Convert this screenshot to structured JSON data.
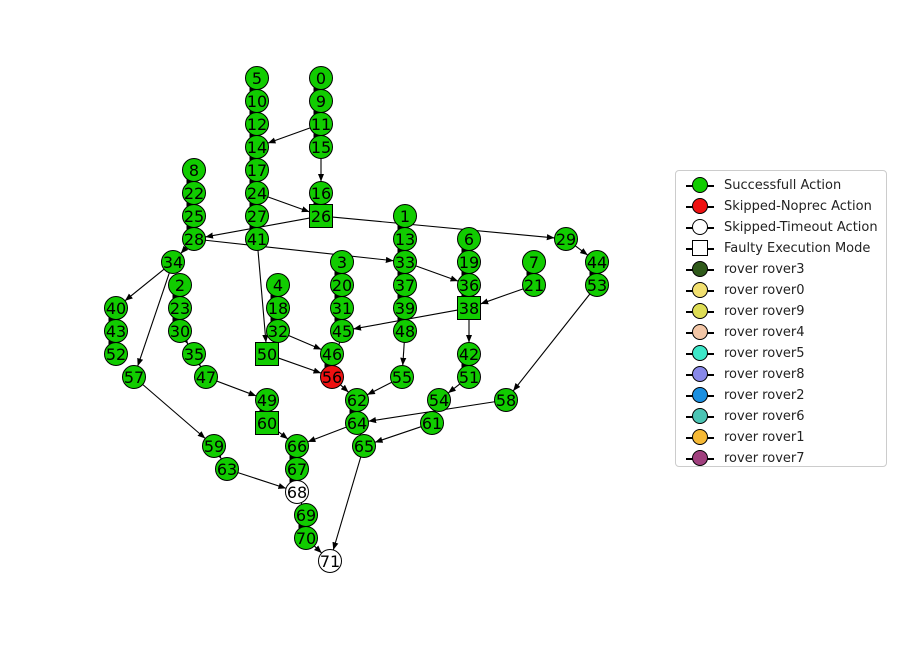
{
  "colors": {
    "success": "#11cc00",
    "skipped_noprec": "#ee1111",
    "skipped_timeout": "#ffffff",
    "edge": "#000000"
  },
  "graph": {
    "nodes": [
      {
        "id": "0",
        "status": "success",
        "shape": "circle"
      },
      {
        "id": "1",
        "status": "success",
        "shape": "circle"
      },
      {
        "id": "2",
        "status": "success",
        "shape": "circle"
      },
      {
        "id": "3",
        "status": "success",
        "shape": "circle"
      },
      {
        "id": "4",
        "status": "success",
        "shape": "circle"
      },
      {
        "id": "5",
        "status": "success",
        "shape": "circle"
      },
      {
        "id": "6",
        "status": "success",
        "shape": "circle"
      },
      {
        "id": "7",
        "status": "success",
        "shape": "circle"
      },
      {
        "id": "8",
        "status": "success",
        "shape": "circle"
      },
      {
        "id": "9",
        "status": "success",
        "shape": "circle"
      },
      {
        "id": "10",
        "status": "success",
        "shape": "circle"
      },
      {
        "id": "11",
        "status": "success",
        "shape": "circle"
      },
      {
        "id": "12",
        "status": "success",
        "shape": "circle"
      },
      {
        "id": "13",
        "status": "success",
        "shape": "circle"
      },
      {
        "id": "14",
        "status": "success",
        "shape": "circle"
      },
      {
        "id": "15",
        "status": "success",
        "shape": "circle"
      },
      {
        "id": "16",
        "status": "success",
        "shape": "circle"
      },
      {
        "id": "17",
        "status": "success",
        "shape": "circle"
      },
      {
        "id": "18",
        "status": "success",
        "shape": "circle"
      },
      {
        "id": "19",
        "status": "success",
        "shape": "circle"
      },
      {
        "id": "20",
        "status": "success",
        "shape": "circle"
      },
      {
        "id": "21",
        "status": "success",
        "shape": "circle"
      },
      {
        "id": "22",
        "status": "success",
        "shape": "circle"
      },
      {
        "id": "23",
        "status": "success",
        "shape": "circle"
      },
      {
        "id": "24",
        "status": "success",
        "shape": "circle"
      },
      {
        "id": "25",
        "status": "success",
        "shape": "circle"
      },
      {
        "id": "26",
        "status": "success",
        "shape": "square"
      },
      {
        "id": "27",
        "status": "success",
        "shape": "circle"
      },
      {
        "id": "28",
        "status": "success",
        "shape": "circle"
      },
      {
        "id": "29",
        "status": "success",
        "shape": "circle"
      },
      {
        "id": "30",
        "status": "success",
        "shape": "circle"
      },
      {
        "id": "31",
        "status": "success",
        "shape": "circle"
      },
      {
        "id": "32",
        "status": "success",
        "shape": "circle"
      },
      {
        "id": "33",
        "status": "success",
        "shape": "circle"
      },
      {
        "id": "34",
        "status": "success",
        "shape": "circle"
      },
      {
        "id": "35",
        "status": "success",
        "shape": "circle"
      },
      {
        "id": "36",
        "status": "success",
        "shape": "circle"
      },
      {
        "id": "37",
        "status": "success",
        "shape": "circle"
      },
      {
        "id": "38",
        "status": "success",
        "shape": "square"
      },
      {
        "id": "39",
        "status": "success",
        "shape": "circle"
      },
      {
        "id": "40",
        "status": "success",
        "shape": "circle"
      },
      {
        "id": "41",
        "status": "success",
        "shape": "circle"
      },
      {
        "id": "42",
        "status": "success",
        "shape": "circle"
      },
      {
        "id": "43",
        "status": "success",
        "shape": "circle"
      },
      {
        "id": "44",
        "status": "success",
        "shape": "circle"
      },
      {
        "id": "45",
        "status": "success",
        "shape": "circle"
      },
      {
        "id": "46",
        "status": "success",
        "shape": "circle"
      },
      {
        "id": "47",
        "status": "success",
        "shape": "circle"
      },
      {
        "id": "48",
        "status": "success",
        "shape": "circle"
      },
      {
        "id": "49",
        "status": "success",
        "shape": "circle"
      },
      {
        "id": "50",
        "status": "success",
        "shape": "square"
      },
      {
        "id": "51",
        "status": "success",
        "shape": "circle"
      },
      {
        "id": "52",
        "status": "success",
        "shape": "circle"
      },
      {
        "id": "53",
        "status": "success",
        "shape": "circle"
      },
      {
        "id": "54",
        "status": "success",
        "shape": "circle"
      },
      {
        "id": "55",
        "status": "success",
        "shape": "circle"
      },
      {
        "id": "56",
        "status": "skipped_noprec",
        "shape": "circle"
      },
      {
        "id": "57",
        "status": "success",
        "shape": "circle"
      },
      {
        "id": "58",
        "status": "success",
        "shape": "circle"
      },
      {
        "id": "59",
        "status": "success",
        "shape": "circle"
      },
      {
        "id": "60",
        "status": "success",
        "shape": "square"
      },
      {
        "id": "61",
        "status": "success",
        "shape": "circle"
      },
      {
        "id": "62",
        "status": "success",
        "shape": "circle"
      },
      {
        "id": "63",
        "status": "success",
        "shape": "circle"
      },
      {
        "id": "64",
        "status": "success",
        "shape": "circle"
      },
      {
        "id": "65",
        "status": "success",
        "shape": "circle"
      },
      {
        "id": "66",
        "status": "success",
        "shape": "circle"
      },
      {
        "id": "67",
        "status": "success",
        "shape": "circle"
      },
      {
        "id": "68",
        "status": "skipped_timeout",
        "shape": "circle"
      },
      {
        "id": "69",
        "status": "success",
        "shape": "circle"
      },
      {
        "id": "70",
        "status": "success",
        "shape": "circle"
      },
      {
        "id": "71",
        "status": "skipped_timeout",
        "shape": "circle"
      }
    ],
    "edges": [
      [
        "0",
        "9"
      ],
      [
        "9",
        "11"
      ],
      [
        "11",
        "14"
      ],
      [
        "11",
        "15"
      ],
      [
        "15",
        "16"
      ],
      [
        "5",
        "10"
      ],
      [
        "10",
        "12"
      ],
      [
        "12",
        "14"
      ],
      [
        "14",
        "17"
      ],
      [
        "17",
        "24"
      ],
      [
        "24",
        "26"
      ],
      [
        "24",
        "27"
      ],
      [
        "27",
        "41"
      ],
      [
        "16",
        "26"
      ],
      [
        "26",
        "28"
      ],
      [
        "26",
        "29"
      ],
      [
        "8",
        "22"
      ],
      [
        "22",
        "25"
      ],
      [
        "25",
        "28"
      ],
      [
        "28",
        "34"
      ],
      [
        "28",
        "33"
      ],
      [
        "34",
        "40"
      ],
      [
        "34",
        "57"
      ],
      [
        "40",
        "43"
      ],
      [
        "43",
        "52"
      ],
      [
        "2",
        "23"
      ],
      [
        "23",
        "30"
      ],
      [
        "30",
        "35"
      ],
      [
        "35",
        "47"
      ],
      [
        "47",
        "49"
      ],
      [
        "49",
        "60"
      ],
      [
        "60",
        "66"
      ],
      [
        "41",
        "50"
      ],
      [
        "50",
        "56"
      ],
      [
        "4",
        "18"
      ],
      [
        "18",
        "32"
      ],
      [
        "32",
        "46"
      ],
      [
        "46",
        "56"
      ],
      [
        "3",
        "20"
      ],
      [
        "20",
        "31"
      ],
      [
        "31",
        "45"
      ],
      [
        "45",
        "56"
      ],
      [
        "1",
        "13"
      ],
      [
        "13",
        "33"
      ],
      [
        "33",
        "36"
      ],
      [
        "33",
        "37"
      ],
      [
        "37",
        "39"
      ],
      [
        "39",
        "48"
      ],
      [
        "48",
        "55"
      ],
      [
        "55",
        "62"
      ],
      [
        "6",
        "19"
      ],
      [
        "19",
        "36"
      ],
      [
        "36",
        "38"
      ],
      [
        "7",
        "21"
      ],
      [
        "21",
        "38"
      ],
      [
        "38",
        "45"
      ],
      [
        "38",
        "42"
      ],
      [
        "42",
        "51"
      ],
      [
        "51",
        "54"
      ],
      [
        "54",
        "61"
      ],
      [
        "61",
        "65"
      ],
      [
        "29",
        "44"
      ],
      [
        "44",
        "53"
      ],
      [
        "53",
        "58"
      ],
      [
        "58",
        "64"
      ],
      [
        "56",
        "62"
      ],
      [
        "62",
        "64"
      ],
      [
        "64",
        "66"
      ],
      [
        "64",
        "65"
      ],
      [
        "65",
        "71"
      ],
      [
        "66",
        "67"
      ],
      [
        "67",
        "68"
      ],
      [
        "57",
        "59"
      ],
      [
        "59",
        "63"
      ],
      [
        "63",
        "68"
      ],
      [
        "68",
        "69"
      ],
      [
        "69",
        "70"
      ],
      [
        "70",
        "71"
      ]
    ]
  },
  "legend": {
    "items": [
      {
        "label": "Successfull Action",
        "color": "#11cc00",
        "marker": "circle"
      },
      {
        "label": "Skipped-Noprec Action",
        "color": "#ee1111",
        "marker": "circle"
      },
      {
        "label": "Skipped-Timeout Action",
        "color": "#ffffff",
        "marker": "circle"
      },
      {
        "label": "Faulty Execution Mode",
        "color": "#ffffff",
        "marker": "square"
      },
      {
        "label": "rover rover3",
        "color": "#2f5a1a",
        "marker": "circle"
      },
      {
        "label": "rover rover0",
        "color": "#f2e070",
        "marker": "circle"
      },
      {
        "label": "rover rover9",
        "color": "#dedd55",
        "marker": "circle"
      },
      {
        "label": "rover rover4",
        "color": "#f3c6a6",
        "marker": "circle"
      },
      {
        "label": "rover rover5",
        "color": "#3ee7c9",
        "marker": "circle"
      },
      {
        "label": "rover rover8",
        "color": "#8888e8",
        "marker": "circle"
      },
      {
        "label": "rover rover2",
        "color": "#1b8fe0",
        "marker": "circle"
      },
      {
        "label": "rover rover6",
        "color": "#4cc4b4",
        "marker": "circle"
      },
      {
        "label": "rover rover1",
        "color": "#f6b935",
        "marker": "circle"
      },
      {
        "label": "rover rover7",
        "color": "#a0407e",
        "marker": "circle"
      }
    ]
  }
}
